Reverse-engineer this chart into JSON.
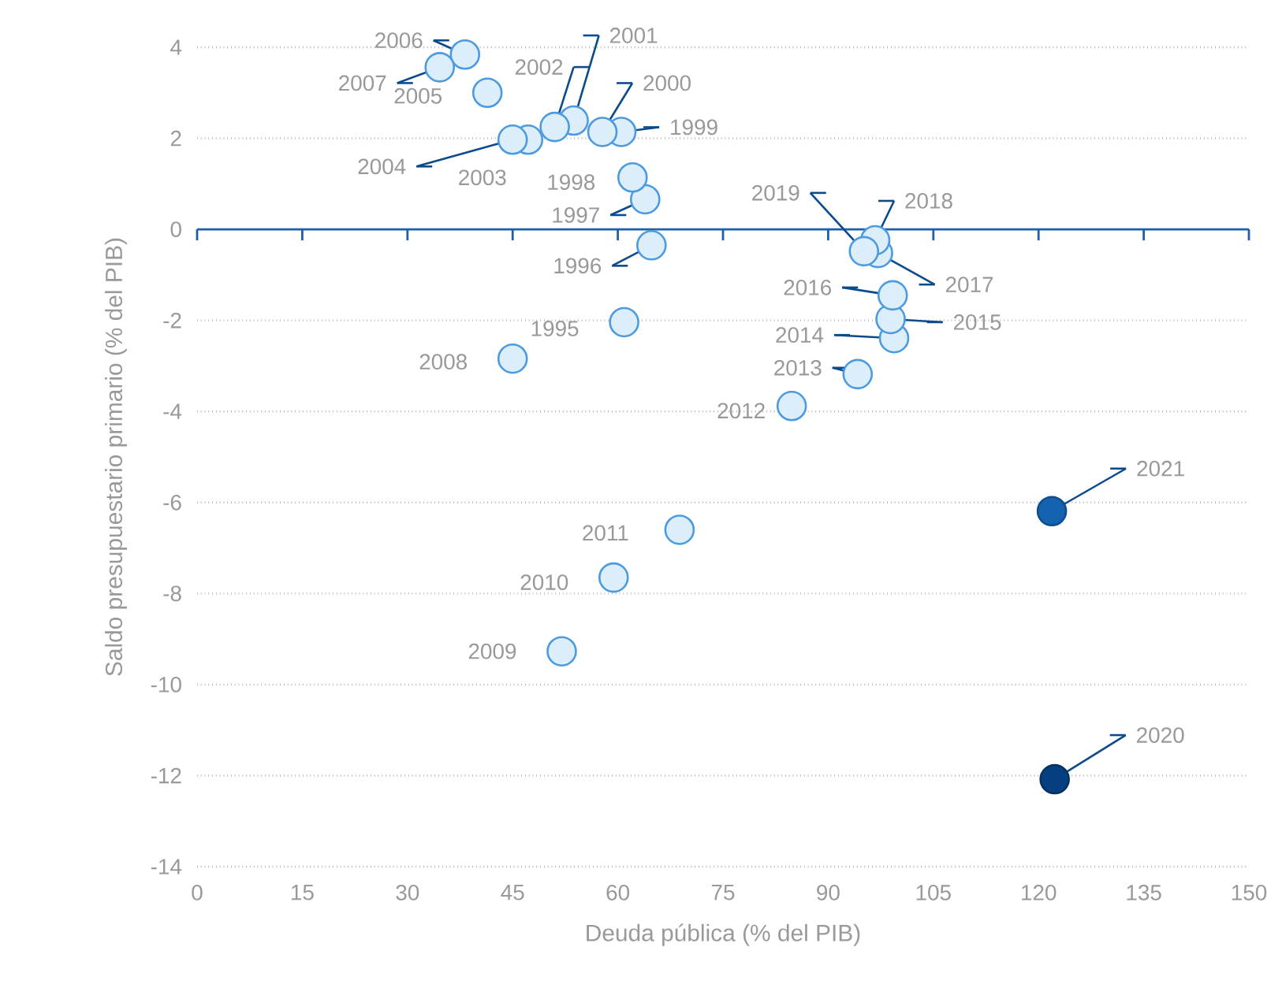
{
  "chart_data": {
    "type": "scatter",
    "xlabel": "Deuda pública (% del PIB)",
    "ylabel": "Saldo presupuestario primario (% del PIB)",
    "xlim": [
      0,
      150
    ],
    "xticks": [
      0,
      15,
      30,
      45,
      60,
      75,
      90,
      105,
      120,
      135,
      150
    ],
    "ylim": [
      -14,
      4
    ],
    "yticks": [
      -14,
      -12,
      -10,
      -8,
      -6,
      -4,
      -2,
      0,
      2,
      4
    ],
    "grid": "y",
    "marker": "circle",
    "ref_lines": [
      {
        "axis": "y",
        "value": 0,
        "color": "#1f5fa8"
      }
    ],
    "x": [
      60.9,
      64.8,
      63.9,
      62.1,
      60.5,
      57.8,
      53.7,
      51.0,
      47.2,
      45.0,
      41.4,
      38.2,
      34.6,
      45.0,
      52.0,
      59.4,
      68.8,
      84.8,
      94.2,
      99.4,
      98.9,
      99.2,
      97.1,
      96.7,
      95.1,
      122.3,
      121.9
    ],
    "values": [
      -2.04,
      -0.35,
      0.66,
      1.14,
      2.14,
      2.14,
      2.39,
      2.25,
      1.97,
      1.97,
      3.0,
      3.84,
      3.56,
      -2.84,
      -9.27,
      -7.65,
      -6.6,
      -3.88,
      -3.18,
      -2.39,
      -1.97,
      -1.45,
      -0.52,
      -0.24,
      -0.48,
      -12.08,
      -6.19
    ],
    "colors": [
      "#ddeefb",
      "#ddeefb",
      "#ddeefb",
      "#ddeefb",
      "#ddeefb",
      "#ddeefb",
      "#ddeefb",
      "#ddeefb",
      "#ddeefb",
      "#ddeefb",
      "#ddeefb",
      "#ddeefb",
      "#ddeefb",
      "#ddeefb",
      "#ddeefb",
      "#ddeefb",
      "#ddeefb",
      "#ddeefb",
      "#ddeefb",
      "#ddeefb",
      "#ddeefb",
      "#ddeefb",
      "#ddeefb",
      "#ddeefb",
      "#ddeefb",
      "#053f80",
      "#1462b0"
    ],
    "annotations": [
      {
        "text": "1995",
        "x": 60.9,
        "y": -2.04
      },
      {
        "text": "1996",
        "x": 64.8,
        "y": -0.35
      },
      {
        "text": "1997",
        "x": 63.9,
        "y": 0.66
      },
      {
        "text": "1998",
        "x": 62.1,
        "y": 1.14
      },
      {
        "text": "1999",
        "x": 60.5,
        "y": 2.14
      },
      {
        "text": "2000",
        "x": 57.8,
        "y": 2.14
      },
      {
        "text": "2001",
        "x": 53.7,
        "y": 2.39
      },
      {
        "text": "2002",
        "x": 51.0,
        "y": 2.25
      },
      {
        "text": "2003",
        "x": 47.2,
        "y": 1.97
      },
      {
        "text": "2004",
        "x": 45.0,
        "y": 1.97
      },
      {
        "text": "2005",
        "x": 41.4,
        "y": 3.0
      },
      {
        "text": "2006",
        "x": 38.2,
        "y": 3.84
      },
      {
        "text": "2007",
        "x": 34.6,
        "y": 3.56
      },
      {
        "text": "2008",
        "x": 45.0,
        "y": -2.84
      },
      {
        "text": "2009",
        "x": 52.0,
        "y": -9.27
      },
      {
        "text": "2010",
        "x": 59.4,
        "y": -7.65
      },
      {
        "text": "2011",
        "x": 68.8,
        "y": -6.6
      },
      {
        "text": "2012",
        "x": 84.8,
        "y": -3.88
      },
      {
        "text": "2013",
        "x": 94.2,
        "y": -3.18
      },
      {
        "text": "2014",
        "x": 99.4,
        "y": -2.39
      },
      {
        "text": "2015",
        "x": 98.9,
        "y": -1.97
      },
      {
        "text": "2016",
        "x": 99.2,
        "y": -1.45
      },
      {
        "text": "2017",
        "x": 97.1,
        "y": -0.52
      },
      {
        "text": "2018",
        "x": 96.7,
        "y": -0.24
      },
      {
        "text": "2019",
        "x": 95.1,
        "y": -0.48
      },
      {
        "text": "2020",
        "x": 122.3,
        "y": -12.08
      },
      {
        "text": "2021",
        "x": 121.9,
        "y": -6.19
      }
    ]
  }
}
